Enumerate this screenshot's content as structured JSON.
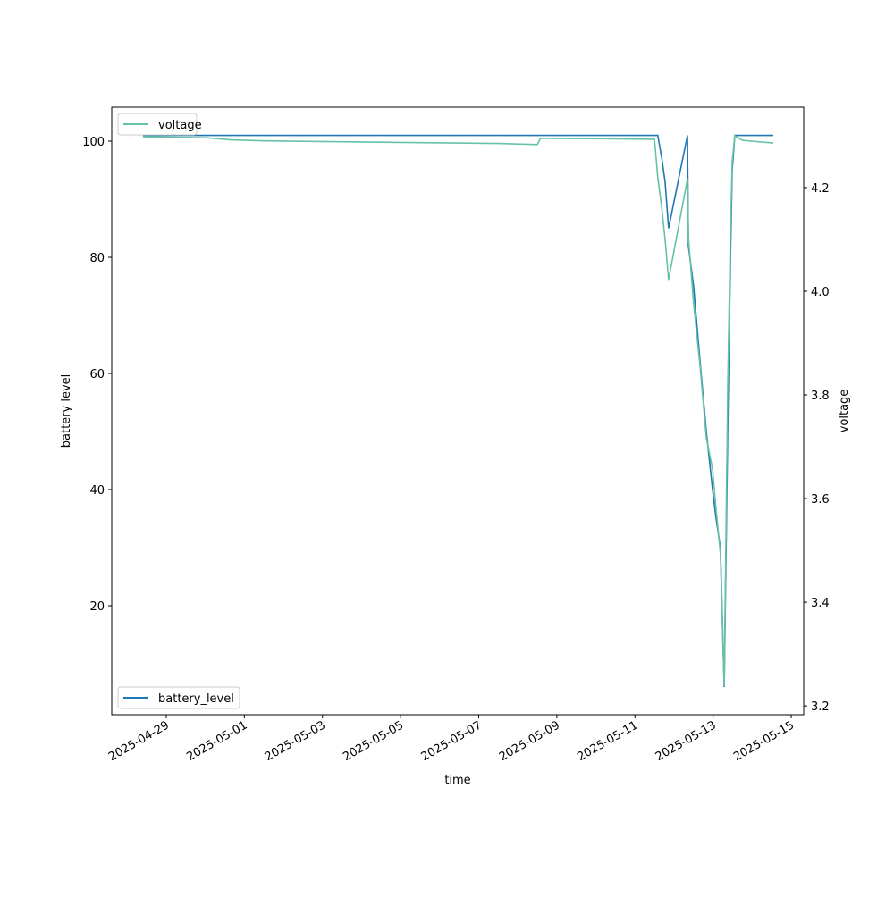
{
  "chart_data": {
    "type": "line",
    "x_label": "time",
    "y_label": "battery level",
    "y2_label": "voltage",
    "x": [
      "2025-04-28T09:40",
      "2025-04-30T00:00",
      "2025-04-30T16:00",
      "2025-05-01T12:00",
      "2025-05-05T00:00",
      "2025-05-07T12:00",
      "2025-05-08T12:00",
      "2025-05-08T14:00",
      "2025-05-10T12:00",
      "2025-05-11T12:00",
      "2025-05-11T14:00",
      "2025-05-11T16:30",
      "2025-05-11T18:30",
      "2025-05-11T20:40",
      "2025-05-12T08:15",
      "2025-05-12T08:50",
      "2025-05-12T12:00",
      "2025-05-12T16:00",
      "2025-05-12T19:50",
      "2025-05-12T23:40",
      "2025-05-13T01:50",
      "2025-05-13T04:30",
      "2025-05-13T06:50",
      "2025-05-13T09:00",
      "2025-05-13T10:40",
      "2025-05-13T11:45",
      "2025-05-13T13:20",
      "2025-05-13T18:00",
      "2025-05-14T13:00"
    ],
    "series": [
      {
        "name": "battery_level",
        "color": "#1f77b4",
        "axis": "y",
        "legend": "lower left",
        "values": [
          101,
          101,
          101,
          101,
          101,
          101,
          101,
          101,
          101,
          101,
          101,
          97,
          93,
          85,
          101,
          82,
          75,
          62,
          50,
          40,
          35,
          30,
          6,
          50,
          80,
          95,
          101,
          101,
          101
        ]
      },
      {
        "name": "voltage",
        "color": "#66c2a5",
        "axis": "y2",
        "legend": "upper left",
        "values": [
          4.298,
          4.296,
          4.292,
          4.29,
          4.287,
          4.285,
          4.283,
          4.295,
          4.294,
          4.293,
          4.22,
          4.16,
          4.1,
          4.022,
          4.217,
          4.105,
          3.976,
          3.855,
          3.717,
          3.657,
          3.579,
          3.493,
          3.238,
          3.82,
          4.114,
          4.25,
          4.3,
          4.291,
          4.286
        ]
      }
    ],
    "xlim": [
      "2025-04-27T14:30",
      "2025-05-15T07:40"
    ],
    "xticks": [
      "2025-04-29",
      "2025-05-01",
      "2025-05-03",
      "2025-05-05",
      "2025-05-07",
      "2025-05-09",
      "2025-05-11",
      "2025-05-13",
      "2025-05-15"
    ],
    "ylim": [
      1.23,
      105.85
    ],
    "yticks": [
      20,
      40,
      60,
      80,
      100
    ],
    "y2lim": [
      3.183,
      4.355
    ],
    "y2ticks": [
      3.2,
      3.4,
      3.6,
      3.8,
      {
        "value": 4,
        "label": "4.0"
      },
      4.2
    ]
  }
}
